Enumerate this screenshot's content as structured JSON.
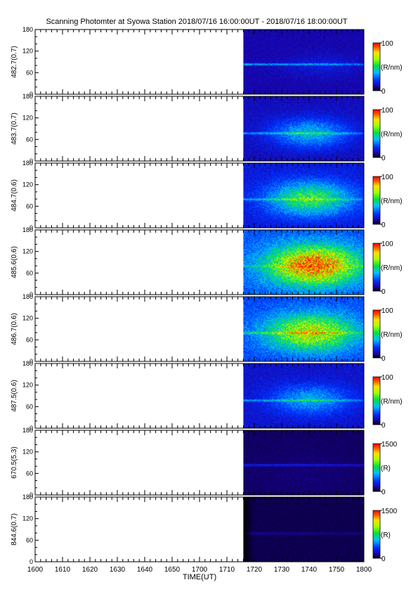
{
  "title": "Scanning Photomter at Syowa Station  2018/07/16 16:00:00UT - 2018/07/16 18:00:00UT",
  "chart_data": {
    "type": "heatmap",
    "xlabel": "TIME(UT)",
    "x_tick_labels": [
      "1600",
      "1610",
      "1620",
      "1630",
      "1640",
      "1650",
      "1700",
      "1710",
      "1720",
      "1730",
      "1740",
      "1750",
      "1800"
    ],
    "x_range_minutes": [
      0,
      120
    ],
    "data_start_minute": 76,
    "y_tick_labels": [
      "0",
      "60",
      "120",
      "180"
    ],
    "ylim": [
      0,
      180
    ],
    "panels": [
      {
        "ylabel": "482.7(0.7)",
        "unit": "(R/nm)",
        "cbar_min": "0",
        "cbar_max": "100",
        "peak": 0.16,
        "band_y": 84,
        "band_strength": 0.28,
        "blob_x": 0.65,
        "blob_y": 80,
        "blob_w": 0.3,
        "blob_h": 30,
        "bg": 0.1,
        "dark_left": 0
      },
      {
        "ylabel": "483.7(0.7)",
        "unit": "(R/nm)",
        "cbar_min": "0",
        "cbar_max": "100",
        "peak": 0.38,
        "band_y": 78,
        "band_strength": 0.22,
        "blob_x": 0.55,
        "blob_y": 78,
        "blob_w": 0.32,
        "blob_h": 40,
        "bg": 0.12,
        "dark_left": 0
      },
      {
        "ylabel": "484.7(0.6)",
        "unit": "(R/nm)",
        "cbar_min": "0",
        "cbar_max": "100",
        "peak": 0.55,
        "band_y": 80,
        "band_strength": 0.18,
        "blob_x": 0.55,
        "blob_y": 82,
        "blob_w": 0.34,
        "blob_h": 46,
        "bg": 0.16,
        "dark_left": 0
      },
      {
        "ylabel": "485.6(0.6)",
        "unit": "(R/nm)",
        "cbar_min": "0",
        "cbar_max": "100",
        "peak": 0.92,
        "band_y": 80,
        "band_strength": 0.1,
        "blob_x": 0.58,
        "blob_y": 82,
        "blob_w": 0.36,
        "blob_h": 52,
        "bg": 0.26,
        "dark_left": 0
      },
      {
        "ylabel": "486.7(0.6)",
        "unit": "(R/nm)",
        "cbar_min": "0",
        "cbar_max": "100",
        "peak": 0.72,
        "band_y": 80,
        "band_strength": 0.2,
        "blob_x": 0.56,
        "blob_y": 82,
        "blob_w": 0.36,
        "blob_h": 50,
        "bg": 0.24,
        "dark_left": 0
      },
      {
        "ylabel": "487.5(0.6)",
        "unit": "(R/nm)",
        "cbar_min": "0",
        "cbar_max": "100",
        "peak": 0.36,
        "band_y": 78,
        "band_strength": 0.2,
        "blob_x": 0.55,
        "blob_y": 80,
        "blob_w": 0.32,
        "blob_h": 40,
        "bg": 0.14,
        "dark_left": 0
      },
      {
        "ylabel": "670.5(5.3)",
        "unit": "(R)",
        "cbar_min": "0",
        "cbar_max": "1500",
        "peak": 0.06,
        "band_y": 84,
        "band_strength": 0.14,
        "blob_x": 0.5,
        "blob_y": 60,
        "blob_w": 0.4,
        "blob_h": 60,
        "bg": 0.05,
        "dark_left": 0
      },
      {
        "ylabel": "844.6(0.7)",
        "unit": "(R)",
        "cbar_min": "0",
        "cbar_max": "1500",
        "peak": 0.04,
        "band_y": 80,
        "band_strength": 0.05,
        "blob_x": 0.55,
        "blob_y": 70,
        "blob_w": 0.45,
        "blob_h": 70,
        "bg": 0.04,
        "dark_left": 0.08
      }
    ]
  }
}
